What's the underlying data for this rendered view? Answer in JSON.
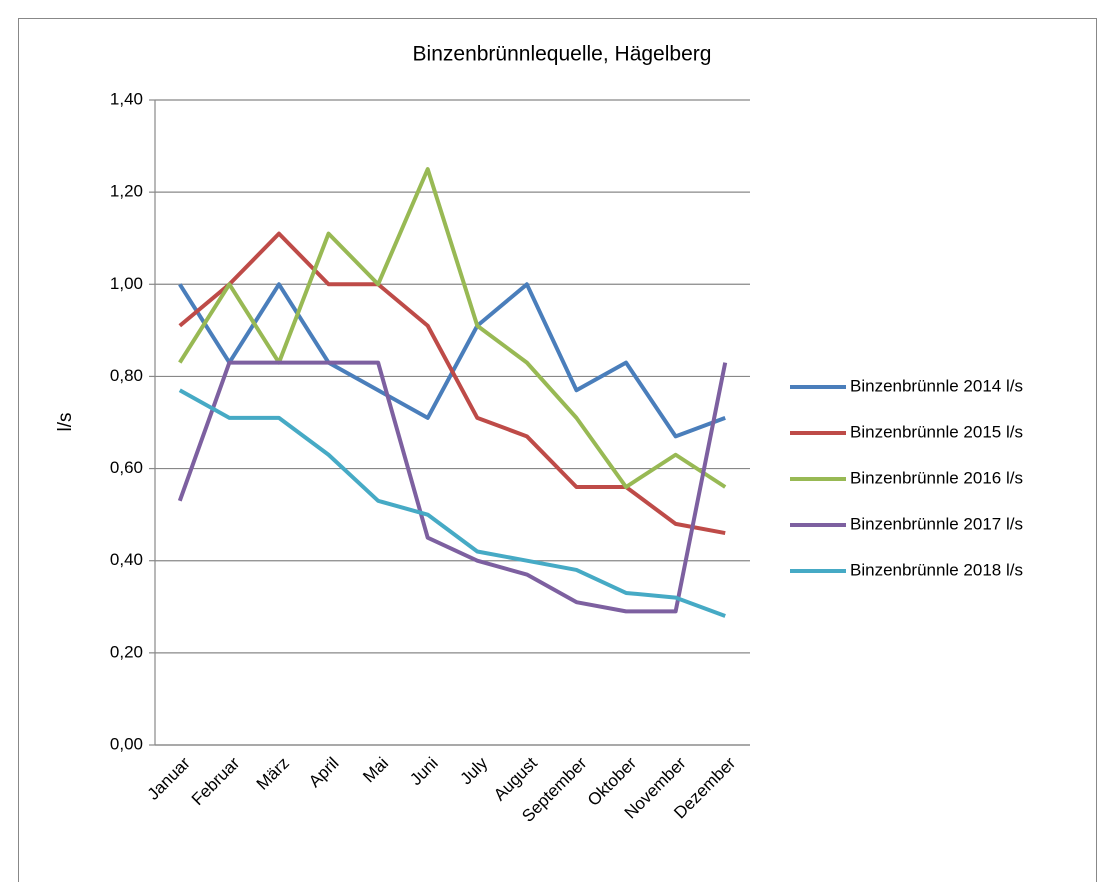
{
  "chart_data": {
    "type": "line",
    "title": "Binzenbrünnlequelle, Hägelberg",
    "y_label": "l/s",
    "categories": [
      "Januar",
      "Februar",
      "März",
      "April",
      "Mai",
      "Juni",
      "July",
      "August",
      "September",
      "Oktober",
      "November",
      "Dezember"
    ],
    "series": [
      {
        "name": "Binzenbrünnle 2014 l/s",
        "color": "#4a7ebb",
        "values": [
          1.0,
          0.83,
          1.0,
          0.83,
          0.77,
          0.71,
          0.91,
          1.0,
          0.77,
          0.83,
          0.67,
          0.71
        ]
      },
      {
        "name": "Binzenbrünnle 2015 l/s",
        "color": "#be4b48",
        "values": [
          0.91,
          1.0,
          1.11,
          1.0,
          1.0,
          0.91,
          0.71,
          0.67,
          0.56,
          0.56,
          0.48,
          0.46
        ]
      },
      {
        "name": "Binzenbrünnle 2016 l/s",
        "color": "#98b954",
        "values": [
          0.83,
          1.0,
          0.83,
          1.11,
          1.0,
          1.25,
          0.91,
          0.83,
          0.71,
          0.56,
          0.63,
          0.56
        ]
      },
      {
        "name": "Binzenbrünnle 2017 l/s",
        "color": "#7d60a0",
        "values": [
          0.53,
          0.83,
          0.83,
          0.83,
          0.83,
          0.45,
          0.4,
          0.37,
          0.31,
          0.29,
          0.29,
          0.83
        ]
      },
      {
        "name": "Binzenbrünnle 2018 l/s",
        "color": "#46aac5",
        "values": [
          0.77,
          0.71,
          0.71,
          0.63,
          0.53,
          0.5,
          0.42,
          0.4,
          0.38,
          0.33,
          0.32,
          0.28
        ]
      }
    ],
    "ylim": [
      0,
      1.4
    ],
    "yticks": [
      {
        "value": 0,
        "label": "0,00"
      },
      {
        "value": 0.2,
        "label": "0,20"
      },
      {
        "value": 0.4,
        "label": "0,40"
      },
      {
        "value": 0.6,
        "label": "0,60"
      },
      {
        "value": 0.8,
        "label": "0,80"
      },
      {
        "value": 1.0,
        "label": "1,00"
      },
      {
        "value": 1.2,
        "label": "1,20"
      },
      {
        "value": 1.4,
        "label": "1,40"
      }
    ],
    "grid": true,
    "legend": "right"
  }
}
